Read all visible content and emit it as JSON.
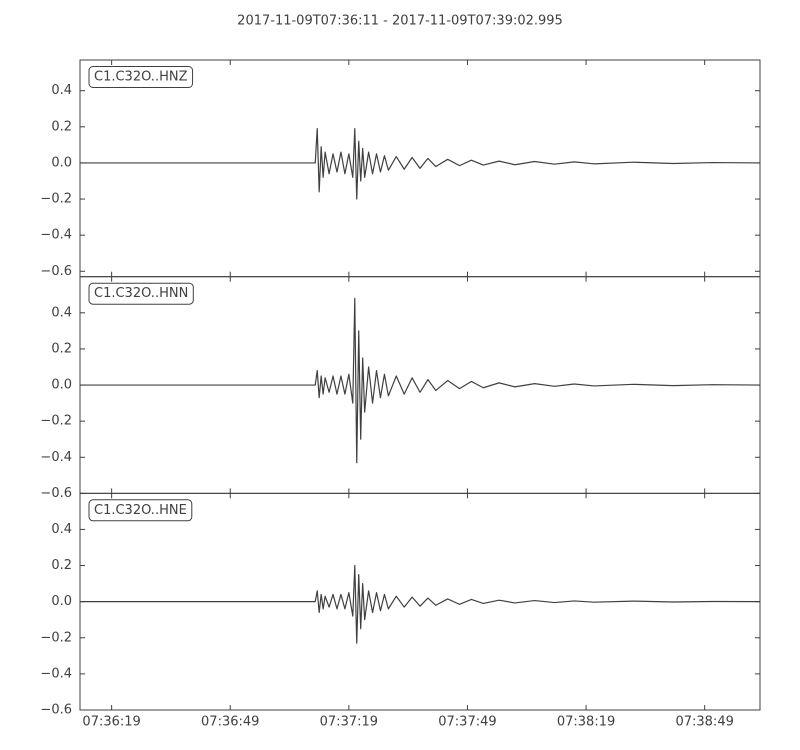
{
  "chart_data": [
    {
      "type": "line",
      "title": "2017-11-09T07:36:11  -  2017-11-09T07:39:02.995",
      "label": "C1.C32O..HNZ",
      "color": "#404040",
      "xlim": [
        0,
        171.995
      ],
      "ylim": [
        -0.63,
        0.57
      ],
      "yticks": [
        {
          "value": -0.6,
          "label": "−0.6"
        },
        {
          "value": -0.4,
          "label": "−0.4"
        },
        {
          "value": -0.2,
          "label": "−0.2"
        },
        {
          "value": 0,
          "label": "0.0"
        },
        0.2,
        0.4
      ],
      "x": [
        0,
        59.5,
        60,
        60.5,
        61,
        61.5,
        62,
        63,
        64,
        65,
        66,
        67,
        68,
        69,
        69.5,
        70,
        70.5,
        71,
        71.5,
        72,
        73,
        74,
        75,
        76,
        77,
        78,
        80,
        82,
        84,
        86,
        88,
        90,
        93,
        96,
        99,
        102,
        106,
        110,
        115,
        120,
        125,
        130,
        140,
        150,
        160,
        171.995
      ],
      "values": [
        0,
        0,
        0.19,
        -0.16,
        0.09,
        -0.08,
        0.06,
        -0.06,
        0.05,
        -0.05,
        0.06,
        -0.06,
        0.05,
        -0.08,
        0.19,
        -0.2,
        0.12,
        -0.1,
        0.08,
        -0.08,
        0.06,
        -0.06,
        0.05,
        -0.05,
        0.04,
        -0.04,
        0.035,
        -0.035,
        0.03,
        -0.03,
        0.025,
        -0.02,
        0.02,
        -0.015,
        0.015,
        -0.012,
        0.01,
        -0.01,
        0.008,
        -0.007,
        0.006,
        -0.005,
        0.004,
        -0.003,
        0.002,
        0
      ]
    },
    {
      "type": "line",
      "label": "C1.C32O..HNN",
      "color": "#404040",
      "xlim": [
        0,
        171.995
      ],
      "ylim": [
        -0.6,
        0.6
      ],
      "yticks": [
        {
          "value": -0.6,
          "label": "−0.6"
        },
        {
          "value": -0.4,
          "label": "−0.4"
        },
        {
          "value": -0.2,
          "label": "−0.2"
        },
        {
          "value": 0,
          "label": "0.0"
        },
        0.2,
        0.4
      ],
      "x": [
        0,
        59.5,
        60,
        60.5,
        61,
        61.5,
        62,
        63,
        64,
        65,
        66,
        67,
        68,
        69,
        69.5,
        70,
        70.5,
        71,
        71.5,
        72,
        73,
        74,
        75,
        76,
        77,
        78,
        80,
        82,
        84,
        86,
        88,
        90,
        93,
        96,
        99,
        102,
        106,
        110,
        115,
        120,
        125,
        130,
        140,
        150,
        160,
        171.995
      ],
      "values": [
        0,
        0,
        0.08,
        -0.07,
        0.05,
        -0.05,
        0.04,
        -0.04,
        0.05,
        -0.05,
        0.05,
        -0.05,
        0.06,
        -0.1,
        0.48,
        -0.43,
        0.3,
        -0.3,
        0.15,
        -0.15,
        0.1,
        -0.1,
        0.08,
        -0.07,
        0.06,
        -0.06,
        0.05,
        -0.05,
        0.04,
        -0.04,
        0.03,
        -0.03,
        0.025,
        -0.02,
        0.02,
        -0.015,
        0.012,
        -0.01,
        0.008,
        -0.007,
        0.006,
        -0.005,
        0.004,
        -0.003,
        0.002,
        0
      ]
    },
    {
      "type": "line",
      "label": "C1.C32O..HNE",
      "color": "#404040",
      "xlim": [
        0,
        171.995
      ],
      "ylim": [
        -0.6,
        0.6
      ],
      "yticks": [
        {
          "value": -0.6,
          "label": "−0.6"
        },
        {
          "value": -0.4,
          "label": "−0.4"
        },
        {
          "value": -0.2,
          "label": "−0.2"
        },
        {
          "value": 0,
          "label": "0.0"
        },
        0.2,
        0.4
      ],
      "xticks": [
        {
          "value": 8,
          "label": "07:36:19"
        },
        {
          "value": 38,
          "label": "07:36:49"
        },
        {
          "value": 68,
          "label": "07:37:19"
        },
        {
          "value": 98,
          "label": "07:37:49"
        },
        {
          "value": 128,
          "label": "07:38:19"
        },
        {
          "value": 158,
          "label": "07:38:49"
        }
      ],
      "x": [
        0,
        59.5,
        60,
        60.5,
        61,
        61.5,
        62,
        63,
        64,
        65,
        66,
        67,
        68,
        69,
        69.5,
        70,
        70.5,
        71,
        71.5,
        72,
        73,
        74,
        75,
        76,
        77,
        78,
        80,
        82,
        84,
        86,
        88,
        90,
        93,
        96,
        99,
        102,
        106,
        110,
        115,
        120,
        125,
        130,
        140,
        150,
        160,
        171.995
      ],
      "values": [
        0,
        0,
        0.06,
        -0.06,
        0.04,
        -0.04,
        0.03,
        -0.03,
        0.04,
        -0.04,
        0.04,
        -0.04,
        0.05,
        -0.08,
        0.2,
        -0.23,
        0.15,
        -0.15,
        0.1,
        -0.1,
        0.06,
        -0.06,
        0.05,
        -0.05,
        0.04,
        -0.04,
        0.03,
        -0.03,
        0.025,
        -0.025,
        0.02,
        -0.02,
        0.015,
        -0.015,
        0.012,
        -0.01,
        0.008,
        -0.007,
        0.006,
        -0.005,
        0.004,
        -0.003,
        0.003,
        -0.002,
        0.001,
        0
      ]
    }
  ]
}
